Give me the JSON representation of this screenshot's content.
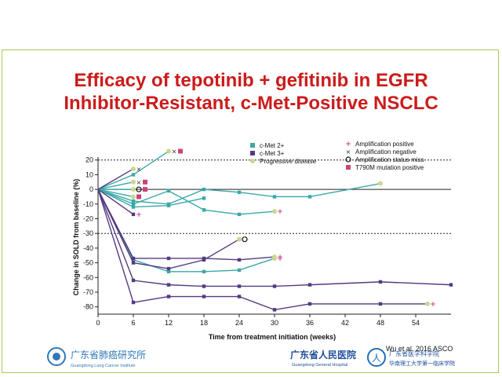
{
  "slide": {
    "title_line1": "Efficacy of tepotinib + gefitinib in EGFR",
    "title_line2": "Inhibitor-Resistant, c-Met-Positive NSCLC",
    "citation": "Wu et al. 2016 ASCO",
    "logo_left": {
      "cn": "广东省肺癌研究所",
      "en": "Guangdong Lung Cancer Institute"
    },
    "logo_right": {
      "cn": "广东省人民医院",
      "en": "Guangdong General Hospital",
      "cn2a": "广东省医学科学院",
      "cn2b": "华南理工大学第一临床学院"
    }
  },
  "colors": {
    "cmet2": "#3aa8a8",
    "cmet3": "#553a80",
    "pd": "#c8d890",
    "amp_pos": "#cc4488",
    "t790m": "#cc4477",
    "title": "#cc1b1b"
  },
  "chart_data": {
    "type": "line",
    "xlabel": "Time from treatment initiation (weeks)",
    "ylabel": "Change in SOLD from baseline (%)",
    "xlim": [
      0,
      60
    ],
    "ylim": [
      -85,
      22
    ],
    "xticks": [
      0,
      6,
      12,
      18,
      24,
      30,
      36,
      42,
      48,
      54
    ],
    "yticks": [
      20,
      10,
      0,
      -10,
      -20,
      -30,
      -40,
      -50,
      -60,
      -70,
      -80
    ],
    "reference_lines": [
      20,
      -30
    ],
    "legend": {
      "series": [
        {
          "label": "c-Met 2+",
          "key": "cmet2"
        },
        {
          "label": "c-Met 3+",
          "key": "cmet3"
        },
        {
          "label": "Progressive disease",
          "key": "pd"
        }
      ],
      "markers": [
        {
          "label": "Amplification positive",
          "symbol": "+"
        },
        {
          "label": "Amplification negative",
          "symbol": "×"
        },
        {
          "label": "Amplification status miss",
          "symbol": "o"
        },
        {
          "label": "T790M mutation positive",
          "symbol": "square"
        }
      ]
    },
    "series": [
      {
        "group": "cmet2",
        "points": [
          [
            0,
            0
          ],
          [
            6,
            10
          ],
          [
            12,
            26
          ]
        ],
        "pd_end": true,
        "end_markers": [
          "x",
          "square"
        ]
      },
      {
        "group": "cmet2",
        "points": [
          [
            0,
            0
          ],
          [
            6,
            -8
          ],
          [
            12,
            -10
          ],
          [
            18,
            0
          ],
          [
            24,
            -2
          ],
          [
            30,
            -5
          ],
          [
            36,
            -5
          ],
          [
            48,
            4
          ]
        ],
        "pd_end": true
      },
      {
        "group": "cmet2",
        "points": [
          [
            0,
            0
          ],
          [
            6,
            -10
          ],
          [
            12,
            -1
          ],
          [
            18,
            -14
          ],
          [
            24,
            -17
          ],
          [
            30,
            -15
          ]
        ],
        "pd_end": true,
        "end_markers": [
          "+"
        ]
      },
      {
        "group": "cmet2",
        "points": [
          [
            0,
            0
          ],
          [
            6,
            -12
          ],
          [
            12,
            -11
          ],
          [
            18,
            -6
          ]
        ]
      },
      {
        "group": "cmet2",
        "points": [
          [
            0,
            0
          ],
          [
            6,
            5
          ]
        ],
        "pd_end": true,
        "end_markers": [
          "x",
          "square"
        ]
      },
      {
        "group": "cmet2",
        "points": [
          [
            0,
            0
          ],
          [
            6,
            0
          ]
        ],
        "pd_end": true,
        "end_markers": [
          "o",
          "square"
        ]
      },
      {
        "group": "cmet2",
        "points": [
          [
            0,
            0
          ],
          [
            6,
            -5
          ]
        ],
        "pd_end": true,
        "end_markers": [
          "square"
        ]
      },
      {
        "group": "cmet2",
        "points": [
          [
            0,
            0
          ],
          [
            6,
            -48
          ],
          [
            12,
            -56
          ],
          [
            18,
            -56
          ],
          [
            24,
            -55
          ],
          [
            30,
            -47
          ]
        ],
        "pd_end": true,
        "end_markers": [
          "+"
        ]
      },
      {
        "group": "cmet3",
        "points": [
          [
            0,
            0
          ],
          [
            6,
            14
          ]
        ],
        "pd_end": true,
        "end_markers": [
          "x"
        ]
      },
      {
        "group": "cmet3",
        "points": [
          [
            0,
            0
          ],
          [
            6,
            -17
          ]
        ],
        "end_markers": [
          "+"
        ]
      },
      {
        "group": "cmet3",
        "points": [
          [
            0,
            0
          ],
          [
            6,
            -47
          ],
          [
            12,
            -47
          ],
          [
            18,
            -47
          ],
          [
            24,
            -48
          ],
          [
            30,
            -46
          ]
        ],
        "pd_end": true,
        "end_markers": [
          "+"
        ]
      },
      {
        "group": "cmet3",
        "points": [
          [
            0,
            0
          ],
          [
            6,
            -50
          ],
          [
            12,
            -54
          ],
          [
            18,
            -48
          ],
          [
            24,
            -34
          ]
        ],
        "pd_end": true,
        "end_markers": [
          "o"
        ]
      },
      {
        "group": "cmet3",
        "points": [
          [
            0,
            0
          ],
          [
            6,
            -62
          ],
          [
            12,
            -65
          ],
          [
            18,
            -66
          ],
          [
            24,
            -66
          ],
          [
            30,
            -66
          ],
          [
            36,
            -65
          ],
          [
            48,
            -63
          ],
          [
            60,
            -65
          ]
        ]
      },
      {
        "group": "cmet3",
        "points": [
          [
            0,
            0
          ],
          [
            6,
            -77
          ],
          [
            12,
            -73
          ],
          [
            18,
            -73
          ],
          [
            24,
            -73
          ],
          [
            30,
            -82
          ],
          [
            36,
            -78
          ],
          [
            48,
            -78
          ],
          [
            56,
            -78
          ]
        ],
        "pd_end": true,
        "end_markers": [
          "+"
        ]
      }
    ]
  }
}
